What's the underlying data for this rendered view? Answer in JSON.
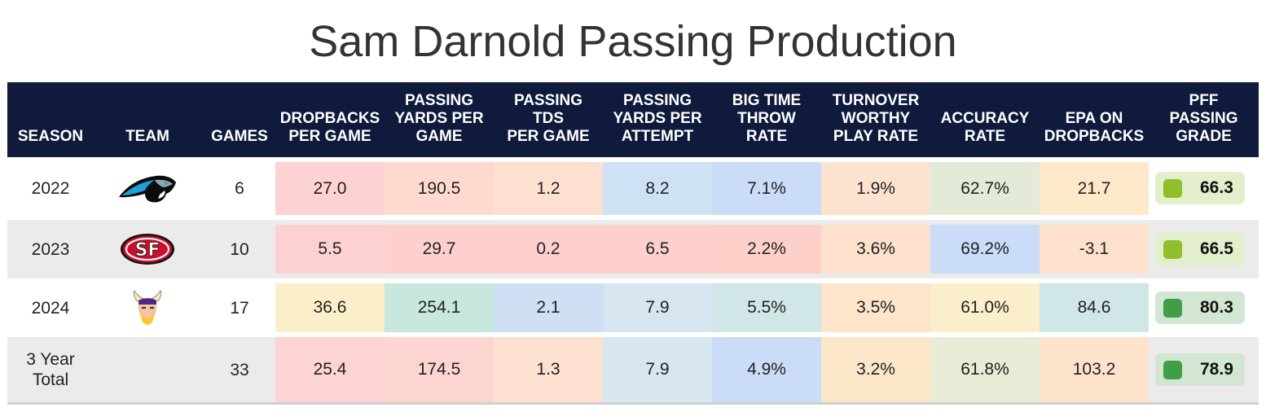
{
  "title": "Sam Darnold Passing Production",
  "headers": {
    "season": "SEASON",
    "team": "TEAM",
    "games": "GAMES",
    "dropbacks": "DROPBACKS\nPER GAME",
    "yards_per_game": "PASSING\nYARDS PER\nGAME",
    "tds": "PASSING\nTDS\nPER GAME",
    "ypa": "PASSING\nYARDS PER\nATTEMPT",
    "btt": "BIG TIME\nTHROW\nRATE",
    "twp": "TURNOVER\nWORTHY\nPLAY RATE",
    "accuracy": "ACCURACY\nRATE",
    "epa": "EPA ON\nDROPBACKS",
    "grade": "PFF\nPASSING\nGRADE"
  },
  "rows": [
    {
      "season": "2022",
      "team_icon": "carolina-panthers-logo",
      "games": "6",
      "dropbacks": "27.0",
      "yards_per_game": "190.5",
      "tds": "1.2",
      "ypa": "8.2",
      "btt": "7.1%",
      "twp": "1.9%",
      "accuracy": "62.7%",
      "epa": "21.7",
      "grade": "66.3"
    },
    {
      "season": "2023",
      "team_icon": "san-francisco-49ers-logo",
      "games": "10",
      "dropbacks": "5.5",
      "yards_per_game": "29.7",
      "tds": "0.2",
      "ypa": "6.5",
      "btt": "2.2%",
      "twp": "3.6%",
      "accuracy": "69.2%",
      "epa": "-3.1",
      "grade": "66.5"
    },
    {
      "season": "2024",
      "team_icon": "minnesota-vikings-logo",
      "games": "17",
      "dropbacks": "36.6",
      "yards_per_game": "254.1",
      "tds": "2.1",
      "ypa": "7.9",
      "btt": "5.5%",
      "twp": "3.5%",
      "accuracy": "61.0%",
      "epa": "84.6",
      "grade": "80.3"
    },
    {
      "season": "3 Year\nTotal",
      "team_icon": "",
      "games": "33",
      "dropbacks": "25.4",
      "yards_per_game": "174.5",
      "tds": "1.3",
      "ypa": "7.9",
      "btt": "4.9%",
      "twp": "3.2%",
      "accuracy": "61.8%",
      "epa": "103.2",
      "grade": "78.9"
    }
  ],
  "colors": {
    "header_bg": "#0f1a3c",
    "grade_mid_bg": "#e3efcc",
    "grade_mid_square": "#8fbf2a",
    "grade_high_bg": "#d2e6d3",
    "grade_high_square": "#3f9e46",
    "cells": [
      [
        "#fdd2d2",
        "#fdd9cf",
        "#fde0cf",
        "#cfe1f4",
        "#cbdcf8",
        "#fde2d0",
        "#e3ebd8",
        "#fde8c9"
      ],
      [
        "#fdd1d1",
        "#fdd0ce",
        "#fdd0ce",
        "#fdd0ce",
        "#fdd0c9",
        "#fde1cd",
        "#cbdcf8",
        "#fde1cd"
      ],
      [
        "#fbefc9",
        "#c8e8dd",
        "#cfdff4",
        "#d6e5f0",
        "#d1e6e7",
        "#fde4cb",
        "#fbeecb",
        "#d0e6e7"
      ],
      [
        "#fdd3d3",
        "#fdd5d0",
        "#fde0cf",
        "#d8e6f0",
        "#cbdcf8",
        "#fde7cb",
        "#e7ecd7",
        "#fde2cc"
      ]
    ]
  }
}
